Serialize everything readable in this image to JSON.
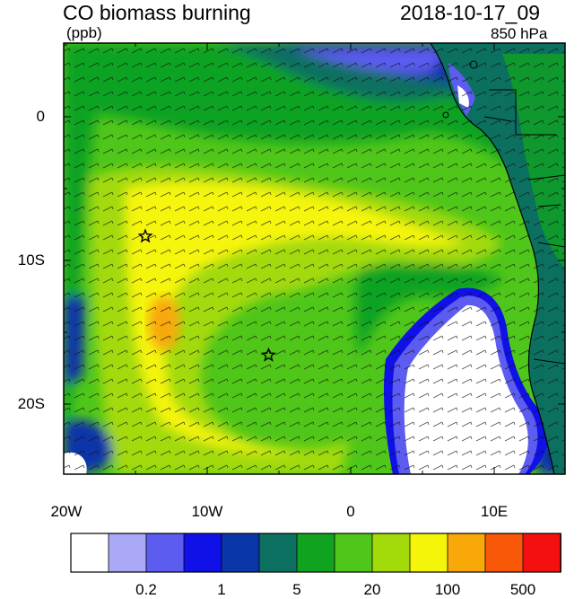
{
  "header": {
    "title": "CO biomass burning",
    "units": "(ppb)",
    "datetime": "2018-10-17_09",
    "level": "850 hPa"
  },
  "map": {
    "lat_labels": [
      "0",
      "10S",
      "20S"
    ],
    "lon_labels": [
      "20W",
      "10W",
      "0",
      "10E"
    ],
    "markers": [
      {
        "name": "star-marker",
        "lon": -14.3,
        "lat": -8.0
      },
      {
        "name": "star-marker",
        "lon": -5.7,
        "lat": -16.0
      }
    ],
    "extent": {
      "lon": [
        -20,
        15
      ],
      "lat": [
        -24,
        5
      ]
    }
  },
  "colorbar": {
    "colors": [
      "#ffffff",
      "#a9a9f5",
      "#5c5cf0",
      "#1010e8",
      "#0a36a8",
      "#0c7060",
      "#10a320",
      "#4fc61a",
      "#a3da0a",
      "#f5f50a",
      "#f8a808",
      "#f85808",
      "#f41010"
    ],
    "tick_labels": [
      "0.2",
      "1",
      "5",
      "20",
      "100",
      "500"
    ]
  }
}
